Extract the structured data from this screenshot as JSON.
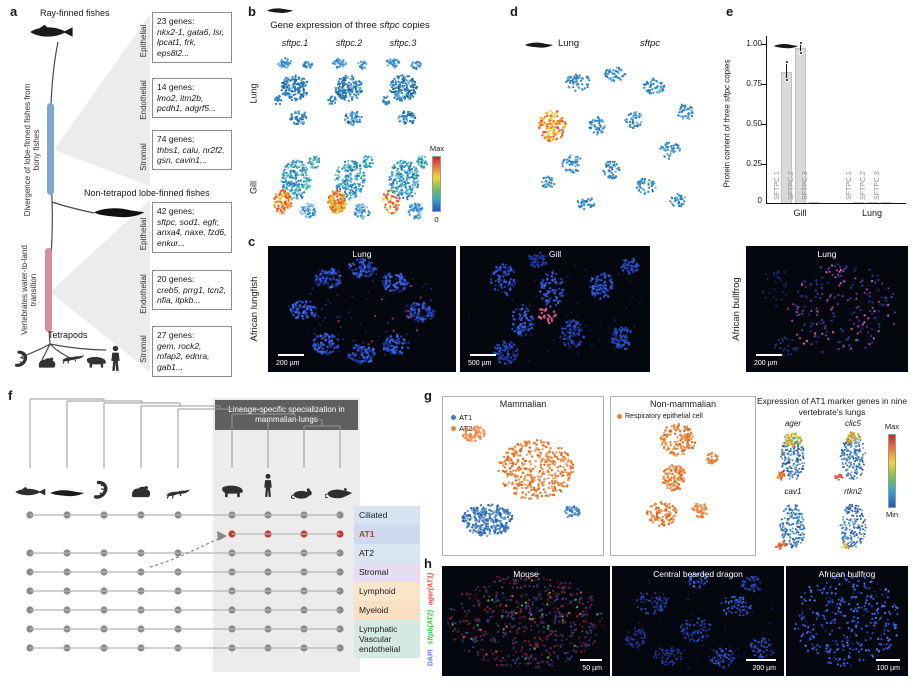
{
  "panel_labels": {
    "a": "a",
    "b": "b",
    "c": "c",
    "d": "d",
    "e": "e",
    "f": "f",
    "g": "g",
    "h": "h"
  },
  "panel_a": {
    "ray_finned": "Ray-finned fishes",
    "divergence": "Divergence of lobe-finned fishes from bony fishes",
    "non_tetrapod": "Non-tetrapod lobe-finned fishes",
    "transition": "Vertebrates water-to-land transition",
    "tetrapods": "Tetrapods",
    "divergence_bar_color": "#7fa8cf",
    "transition_bar_color": "#d68f98",
    "gene_boxes": [
      {
        "side": "Epithelial",
        "count": "23 genes:",
        "genes": "nkx2-1, gata6, lsr, lpcat1, frk, eps8l2..."
      },
      {
        "side": "Endothelial",
        "count": "14 genes:",
        "genes": "lmo2, itm2b, pcdh1, adgrf5..."
      },
      {
        "side": "Stromal",
        "count": "74 genes:",
        "genes": "thbs1, calu, nr2f2, gsn, cavin1..."
      },
      {
        "side": "Epithelial",
        "count": "42 genes:",
        "genes": "sftpc, sod1, egfr, anxa4, naxe, fzd6, enkur..."
      },
      {
        "side": "Endothelial",
        "count": "20 genes:",
        "genes": "creb5, prrg1, tcn2, nfia, itpkb..."
      },
      {
        "side": "Stromal",
        "count": "27 genes:",
        "genes": "gem, rock2, mfap2, ednra, gab1..."
      }
    ]
  },
  "panel_b": {
    "title_pre": "Gene expression of three ",
    "title_gene": "sftpc",
    "title_post": " copies",
    "col_labels": [
      "sftpc.1",
      "sftpc.2",
      "sftpc.3"
    ],
    "row_labels": [
      "Lung",
      "Gill"
    ],
    "colorbar": {
      "max": "Max",
      "min": "0"
    }
  },
  "panel_c": {
    "species": [
      "African lungfish",
      "African bullfrog"
    ],
    "images": [
      {
        "title": "Lung",
        "scale_bar": "200 µm"
      },
      {
        "title": "Gill",
        "scale_bar": "500 µm"
      },
      {
        "title": "Lung",
        "scale_bar": "200 µm"
      }
    ]
  },
  "panel_d": {
    "organ": "Lung",
    "gene": "sftpc"
  },
  "panel_f": {
    "header": "Lineage-specific specialization in mammalian lungs",
    "cell_types": [
      {
        "label": "Ciliated",
        "band": "#d7e3f1",
        "text": "#1a1a1a"
      },
      {
        "label": "AT1",
        "band": "#cdd9ee",
        "text": "#c0392b"
      },
      {
        "label": "AT2",
        "band": "#dae5f3",
        "text": "#1a1a1a"
      },
      {
        "label": "Stromal",
        "band": "#e6def0",
        "text": "#1a1a1a"
      },
      {
        "label": "Lymphoid",
        "band": "#fbe6cc",
        "text": "#1a1a1a"
      },
      {
        "label": "Myeloid",
        "band": "#fbdfc2",
        "text": "#1a1a1a"
      },
      {
        "label": "Lymphatic Vascular endothelial",
        "band": "#d4e9e2",
        "text": "#1a1a1a"
      }
    ],
    "dot_color": "#8a8a8a",
    "at1_dot_color": "#c63a30"
  },
  "panel_g": {
    "box1_title": "Mammalian",
    "box2_title": "Non-mammalian",
    "legend_mammalian": [
      {
        "label": "AT1",
        "color": "#3b7bbf"
      },
      {
        "label": "AT2",
        "color": "#e8833a"
      }
    ],
    "legend_non_mammalian": [
      {
        "label": "Respiratory epithelial cell",
        "color": "#e8833a"
      }
    ],
    "right_title": "Expression of AT1 marker genes in nine vertebrate's lungs",
    "genes": [
      "ager",
      "clic5",
      "cav1",
      "rtkn2"
    ],
    "colorbar": {
      "max": "Max",
      "min": "Min"
    }
  },
  "panel_h": {
    "stains": [
      {
        "label": "DAPI",
        "color": "#5b7cfa"
      },
      {
        "label": "sftpb(AT2)",
        "color": "#2ecc40"
      },
      {
        "label": "ager(AT1)",
        "color": "#ff4136"
      }
    ],
    "images": [
      {
        "title": "Mouse",
        "scale_bar": "50 µm"
      },
      {
        "title": "Central bearded dragon",
        "scale_bar": "200 µm"
      },
      {
        "title": "African bullfrog",
        "scale_bar": "100 µm"
      }
    ]
  },
  "chart_data": {
    "type": "bar",
    "title": "Protein content of three sftpc copies",
    "ylabel_pre": "Protein content of three ",
    "ylabel_gene": "sftpc",
    "ylabel_post": " copies",
    "groups": [
      "Gill",
      "Lung"
    ],
    "bar_labels": [
      "SFTPC.1",
      "SFTPC.2",
      "SFTPC.3"
    ],
    "series": [
      {
        "name": "Gill",
        "values": [
          0.82,
          0.97,
          0.005
        ]
      },
      {
        "name": "Lung",
        "values": [
          0.005,
          0.005,
          0.005
        ]
      }
    ],
    "points": [
      [
        [
          0.77,
          0.88
        ],
        [
          0.94,
          1.0
        ],
        []
      ],
      [
        [],
        [],
        []
      ]
    ],
    "ylim": [
      0,
      1.0
    ],
    "yticks": [
      0,
      0.25,
      0.5,
      0.75,
      1.0
    ],
    "ytick_labels": [
      "0",
      "0.25",
      "0.50",
      "0.75",
      "1.00"
    ],
    "bar_color": "#d9d9d9",
    "legend_position": "none",
    "grid": false
  }
}
